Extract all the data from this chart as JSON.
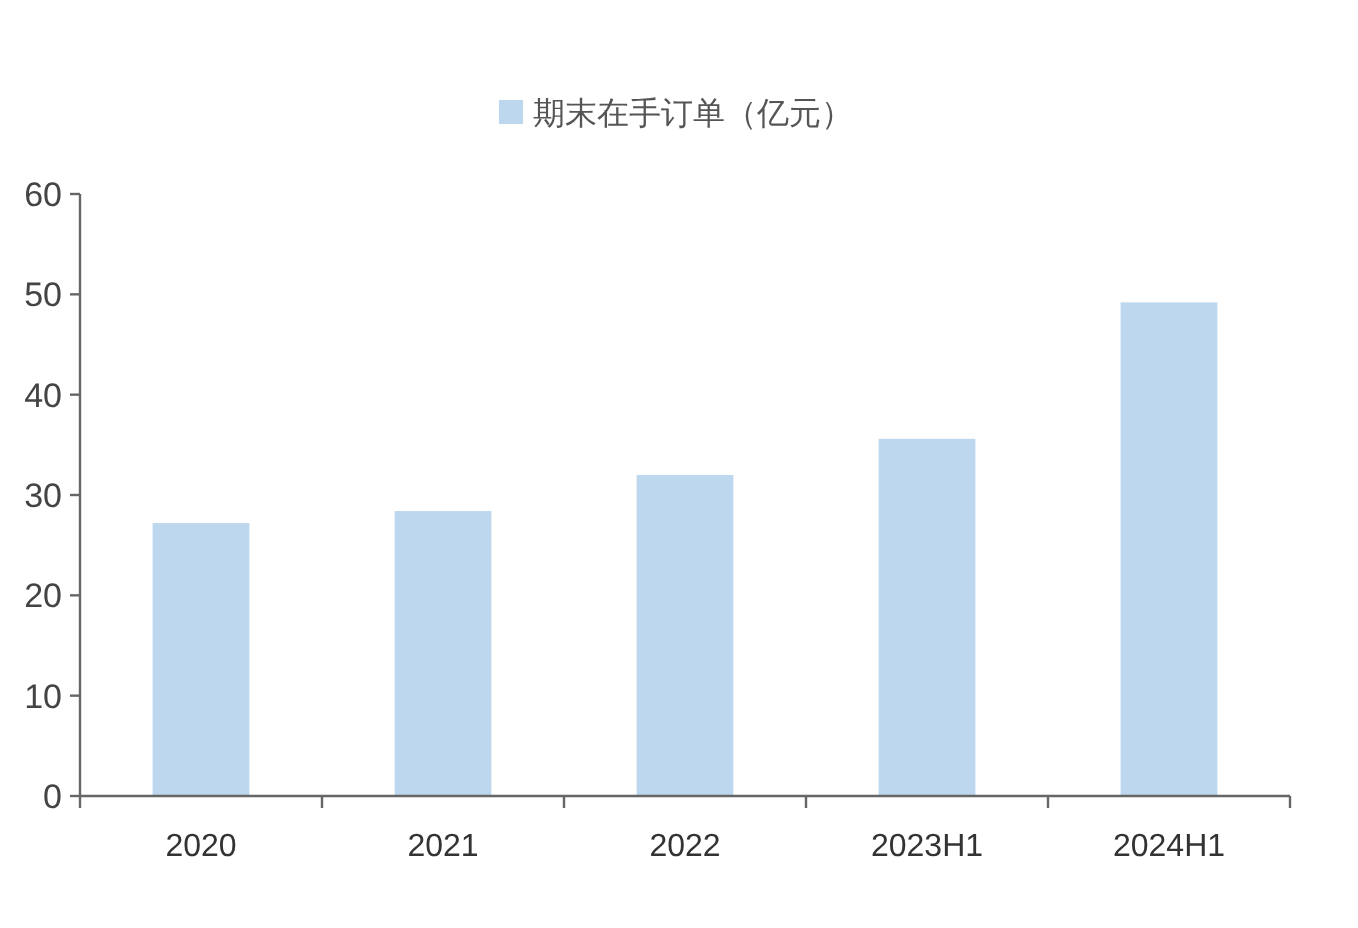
{
  "chart_data": {
    "type": "bar",
    "categories": [
      "2020",
      "2021",
      "2022",
      "2023H1",
      "2024H1"
    ],
    "series": [
      {
        "name": "期末在手订单（亿元）",
        "color": "#bdd7ee",
        "values": [
          27.2,
          28.4,
          32.0,
          35.6,
          49.2
        ]
      }
    ],
    "ylim": [
      0,
      60
    ],
    "yticks": [
      0,
      10,
      20,
      30,
      40,
      50,
      60
    ],
    "grid": false,
    "legend": "top"
  }
}
